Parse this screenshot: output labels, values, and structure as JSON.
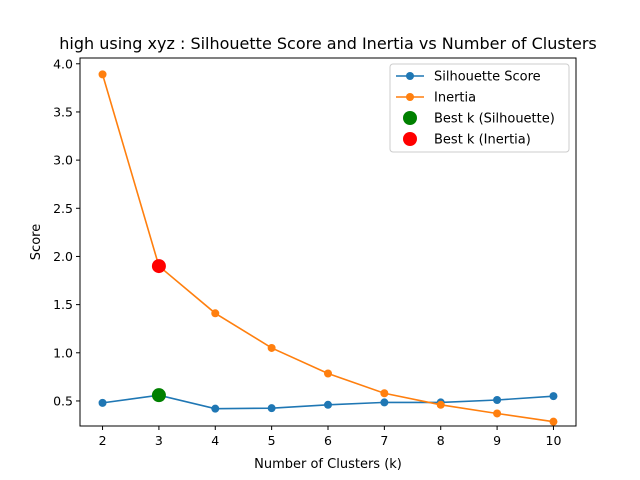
{
  "chart_data": {
    "type": "line",
    "title": "high using xyz : Silhouette Score and Inertia vs Number of Clusters",
    "xlabel": "Number of Clusters (k)",
    "ylabel": "Score",
    "x": [
      2,
      3,
      4,
      5,
      6,
      7,
      8,
      9,
      10
    ],
    "xlim": [
      1.6,
      10.4
    ],
    "ylim": [
      0.24,
      4.06
    ],
    "xticks": [
      "2",
      "3",
      "4",
      "5",
      "6",
      "7",
      "8",
      "9",
      "10"
    ],
    "yticks": [
      "0.5",
      "1.0",
      "1.5",
      "2.0",
      "2.5",
      "3.0",
      "3.5",
      "4.0"
    ],
    "grid": false,
    "legend_position": "top-right",
    "series": [
      {
        "name": "Silhouette Score",
        "color": "#1f77b4",
        "marker": "circle",
        "values": [
          0.48,
          0.56,
          0.42,
          0.425,
          0.46,
          0.485,
          0.485,
          0.51,
          0.55
        ]
      },
      {
        "name": "Inertia",
        "color": "#ff7f0e",
        "marker": "circle",
        "values": [
          3.89,
          1.9,
          1.41,
          1.05,
          0.785,
          0.58,
          0.46,
          0.37,
          0.285
        ]
      }
    ],
    "highlights": [
      {
        "name": "Best k (Silhouette)",
        "color": "#008000",
        "x": 3,
        "y": 0.56
      },
      {
        "name": "Best k (Inertia)",
        "color": "#ff0000",
        "x": 3,
        "y": 1.9
      }
    ]
  }
}
